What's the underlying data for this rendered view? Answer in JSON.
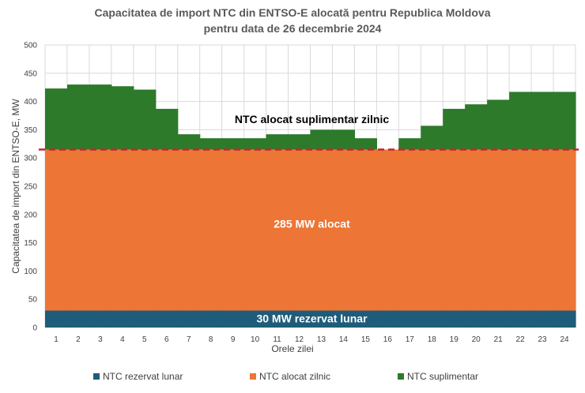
{
  "chart_data": {
    "type": "bar",
    "title": "Capacitatea de import NTC din ENTSO-E alocată pentru Republica Moldova",
    "subtitle": "pentru data de 26 decembrie 2024",
    "xlabel": "Orele zilei",
    "ylabel": "Capacitatea de import din ENTSO-E, MW",
    "ylim": [
      0,
      500
    ],
    "yticks": [
      0,
      50,
      100,
      150,
      200,
      250,
      300,
      350,
      400,
      450,
      500
    ],
    "grid": true,
    "legend_position": "bottom",
    "stacked": true,
    "categories": [
      "1",
      "2",
      "3",
      "4",
      "5",
      "6",
      "7",
      "8",
      "9",
      "10",
      "11",
      "12",
      "13",
      "14",
      "15",
      "16",
      "17",
      "18",
      "19",
      "20",
      "21",
      "22",
      "23",
      "24"
    ],
    "series": [
      {
        "name": "NTC rezervat lunar",
        "color": "#1f5c7a",
        "values": [
          30,
          30,
          30,
          30,
          30,
          30,
          30,
          30,
          30,
          30,
          30,
          30,
          30,
          30,
          30,
          30,
          30,
          30,
          30,
          30,
          30,
          30,
          30,
          30
        ]
      },
      {
        "name": "NTC alocat zilnic",
        "color": "#ed7535",
        "values": [
          285,
          285,
          285,
          285,
          285,
          285,
          285,
          285,
          285,
          285,
          285,
          285,
          285,
          285,
          285,
          285,
          285,
          285,
          285,
          285,
          285,
          285,
          285,
          285
        ]
      },
      {
        "name": "NTC suplimentar",
        "color": "#2d7a2a",
        "values": [
          108,
          115,
          115,
          112,
          106,
          72,
          27,
          20,
          20,
          20,
          27,
          27,
          35,
          35,
          20,
          0,
          20,
          42,
          72,
          80,
          88,
          102,
          102,
          102
        ]
      }
    ],
    "reference_line": {
      "value": 315,
      "color": "#c0282d"
    },
    "annotations": {
      "supplementary": "NTC alocat suplimentar zilnic",
      "allocated": "285 MW alocat",
      "reserved": "30 MW rezervat lunar"
    }
  }
}
